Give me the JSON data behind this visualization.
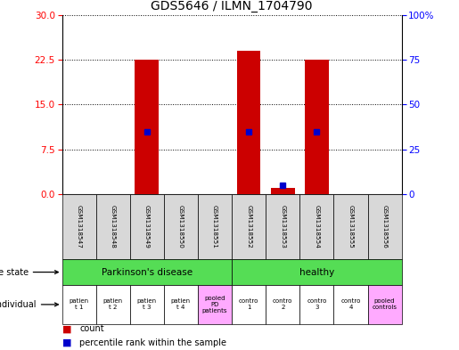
{
  "title": "GDS5646 / ILMN_1704790",
  "samples": [
    "GSM1318547",
    "GSM1318548",
    "GSM1318549",
    "GSM1318550",
    "GSM1318551",
    "GSM1318552",
    "GSM1318553",
    "GSM1318554",
    "GSM1318555",
    "GSM1318556"
  ],
  "counts": [
    0,
    0,
    22.5,
    0,
    0,
    24.0,
    1.0,
    22.5,
    0,
    0
  ],
  "percentile": [
    0,
    0,
    35,
    0,
    0,
    35,
    5,
    35,
    0,
    0
  ],
  "ylim_left": [
    0,
    30
  ],
  "ylim_right": [
    0,
    100
  ],
  "yticks_left": [
    0,
    7.5,
    15,
    22.5,
    30
  ],
  "yticks_right": [
    0,
    25,
    50,
    75,
    100
  ],
  "bar_color": "#cc0000",
  "dot_color": "#0000cc",
  "disease_state_labels": [
    "Parkinson's disease",
    "healthy"
  ],
  "disease_state_color": "#55dd55",
  "individual_labels": [
    "patien\nt 1",
    "patien\nt 2",
    "patien\nt 3",
    "patien\nt 4",
    "pooled\nPD\npatients",
    "contro\n1",
    "contro\n2",
    "contro\n3",
    "contro\n4",
    "pooled\ncontrols"
  ],
  "individual_colors": [
    "#ffffff",
    "#ffffff",
    "#ffffff",
    "#ffffff",
    "#ffaaff",
    "#ffffff",
    "#ffffff",
    "#ffffff",
    "#ffffff",
    "#ffaaff"
  ],
  "bg_color": "#d8d8d8",
  "legend_count": "count",
  "legend_pct": "percentile rank within the sample"
}
